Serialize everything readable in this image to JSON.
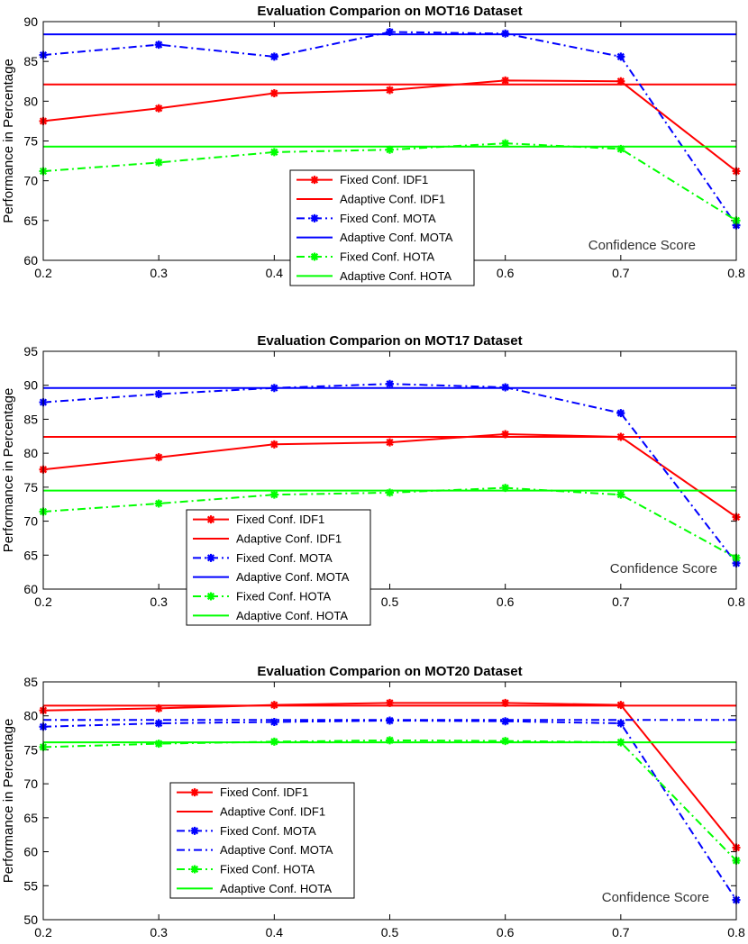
{
  "chart_data": [
    {
      "type": "line",
      "title": "Evaluation Comparion on MOT16 Dataset",
      "xlabel": "Confidence Score",
      "ylabel": "Performance in Percentage",
      "x": [
        0.2,
        0.3,
        0.4,
        0.5,
        0.6,
        0.7,
        0.8
      ],
      "x_tick_labels": [
        "0.2",
        "0.3",
        "0.4",
        "0.5",
        "0.6",
        "0.7",
        "0.8"
      ],
      "xlim": [
        0.2,
        0.8
      ],
      "ylim": [
        60,
        90
      ],
      "y_ticks": [
        60,
        65,
        70,
        75,
        80,
        85,
        90
      ],
      "legend_location": "center-bottom",
      "series": [
        {
          "name": "Fixed Conf. IDF1",
          "color": "#ff0000",
          "style": "solid-marker",
          "values": [
            77.5,
            79.1,
            81.0,
            81.4,
            82.6,
            82.5,
            71.2
          ]
        },
        {
          "name": "Adaptive Conf. IDF1",
          "color": "#ff0000",
          "style": "solid",
          "values": [
            82.1,
            82.1,
            82.1,
            82.1,
            82.1,
            82.1,
            82.1
          ]
        },
        {
          "name": "Fixed Conf. MOTA",
          "color": "#0000ff",
          "style": "dashdot-marker",
          "values": [
            85.8,
            87.1,
            85.6,
            88.7,
            88.5,
            85.6,
            64.4
          ]
        },
        {
          "name": "Adaptive Conf. MOTA",
          "color": "#0000ff",
          "style": "solid",
          "values": [
            88.4,
            88.4,
            88.4,
            88.4,
            88.4,
            88.4,
            88.4
          ]
        },
        {
          "name": "Fixed Conf. HOTA",
          "color": "#00ff00",
          "style": "dashdot-marker",
          "values": [
            71.2,
            72.3,
            73.6,
            73.9,
            74.7,
            74.0,
            65.0
          ]
        },
        {
          "name": "Adaptive Conf. HOTA",
          "color": "#00ff00",
          "style": "solid",
          "values": [
            74.3,
            74.3,
            74.3,
            74.3,
            74.3,
            74.3,
            74.3
          ]
        }
      ]
    },
    {
      "type": "line",
      "title": "Evaluation Comparion on MOT17 Dataset",
      "xlabel": "Confidence Score",
      "ylabel": "Performance in Percentage",
      "x": [
        0.2,
        0.3,
        0.4,
        0.5,
        0.6,
        0.7,
        0.8
      ],
      "x_tick_labels": [
        "0.2",
        "0.3",
        "0.4",
        "0.5",
        "0.6",
        "0.7",
        "0.8"
      ],
      "xlim": [
        0.2,
        0.8
      ],
      "ylim": [
        60,
        95
      ],
      "y_ticks": [
        60,
        65,
        70,
        75,
        80,
        85,
        90,
        95
      ],
      "legend_location": "bottom-left",
      "series": [
        {
          "name": "Fixed Conf. IDF1",
          "color": "#ff0000",
          "style": "solid-marker",
          "values": [
            77.6,
            79.4,
            81.3,
            81.6,
            82.8,
            82.4,
            70.6
          ]
        },
        {
          "name": "Adaptive Conf. IDF1",
          "color": "#ff0000",
          "style": "solid",
          "values": [
            82.4,
            82.4,
            82.4,
            82.4,
            82.4,
            82.4,
            82.4
          ]
        },
        {
          "name": "Fixed Conf. MOTA",
          "color": "#0000ff",
          "style": "dashdot-marker",
          "values": [
            87.5,
            88.7,
            89.6,
            90.2,
            89.7,
            85.9,
            63.8
          ]
        },
        {
          "name": "Adaptive Conf. MOTA",
          "color": "#0000ff",
          "style": "solid",
          "values": [
            89.6,
            89.6,
            89.6,
            89.6,
            89.6,
            89.6,
            89.6
          ]
        },
        {
          "name": "Fixed Conf. HOTA",
          "color": "#00ff00",
          "style": "dashdot-marker",
          "values": [
            71.4,
            72.6,
            73.9,
            74.2,
            74.9,
            73.9,
            64.6
          ]
        },
        {
          "name": "Adaptive Conf. HOTA",
          "color": "#00ff00",
          "style": "solid",
          "values": [
            74.5,
            74.5,
            74.5,
            74.5,
            74.5,
            74.5,
            74.5
          ]
        }
      ]
    },
    {
      "type": "line",
      "title": "Evaluation Comparion on MOT20 Dataset",
      "xlabel": "Confidence Score",
      "ylabel": "Performance in Percentage",
      "x": [
        0.2,
        0.3,
        0.4,
        0.5,
        0.6,
        0.7,
        0.8
      ],
      "x_tick_labels": [
        "0.2",
        "0.3",
        "0.4",
        "0.5",
        "0.6",
        "0.7",
        "0.8"
      ],
      "xlim": [
        0.2,
        0.8
      ],
      "ylim": [
        50,
        85
      ],
      "y_ticks": [
        50,
        55,
        60,
        65,
        70,
        75,
        80,
        85
      ],
      "legend_location": "bottom-left",
      "series": [
        {
          "name": "Fixed Conf. IDF1",
          "color": "#ff0000",
          "style": "solid-marker",
          "values": [
            80.8,
            81.1,
            81.6,
            81.9,
            81.9,
            81.6,
            60.6
          ]
        },
        {
          "name": "Adaptive Conf. IDF1",
          "color": "#ff0000",
          "style": "solid",
          "values": [
            81.5,
            81.5,
            81.5,
            81.5,
            81.5,
            81.5,
            81.5
          ]
        },
        {
          "name": "Fixed Conf. MOTA",
          "color": "#0000ff",
          "style": "dashdot-marker",
          "values": [
            78.4,
            78.9,
            79.1,
            79.3,
            79.2,
            78.9,
            52.9
          ]
        },
        {
          "name": "Adaptive Conf. MOTA",
          "color": "#0000ff",
          "style": "dashdot",
          "values": [
            79.4,
            79.4,
            79.4,
            79.4,
            79.4,
            79.4,
            79.4
          ]
        },
        {
          "name": "Fixed Conf. HOTA",
          "color": "#00ff00",
          "style": "dashdot-marker",
          "values": [
            75.4,
            75.9,
            76.2,
            76.4,
            76.3,
            76.1,
            58.7
          ]
        },
        {
          "name": "Adaptive Conf. HOTA",
          "color": "#00ff00",
          "style": "solid",
          "values": [
            76.1,
            76.1,
            76.1,
            76.1,
            76.1,
            76.1,
            76.1
          ]
        }
      ]
    }
  ]
}
